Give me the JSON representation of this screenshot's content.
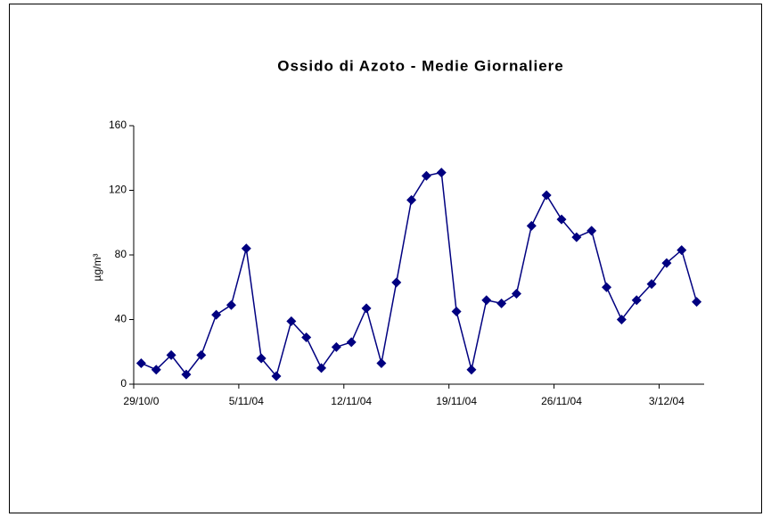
{
  "chart_data": {
    "type": "line",
    "title": "Ossido di Azoto -  Medie Giornaliere",
    "y_label": "µg/m³",
    "categories": [
      "29/10/0",
      null,
      null,
      null,
      null,
      null,
      null,
      "5/11/04",
      null,
      null,
      null,
      null,
      null,
      null,
      "12/11/04",
      null,
      null,
      null,
      null,
      null,
      null,
      "19/11/04",
      null,
      null,
      null,
      null,
      null,
      null,
      "26/11/04",
      null,
      null,
      null,
      null,
      null,
      null,
      "3/12/04",
      null,
      null
    ],
    "values": [
      13,
      9,
      18,
      6,
      18,
      43,
      49,
      84,
      16,
      5,
      39,
      29,
      10,
      23,
      26,
      47,
      13,
      63,
      114,
      129,
      131,
      45,
      9,
      52,
      50,
      56,
      98,
      117,
      102,
      91,
      95,
      60,
      40,
      52,
      62,
      75,
      83,
      51
    ],
    "color": "#000080",
    "ylim": [
      0,
      160
    ],
    "yticks": [
      0,
      40,
      80,
      120,
      160
    ],
    "grid": false
  }
}
